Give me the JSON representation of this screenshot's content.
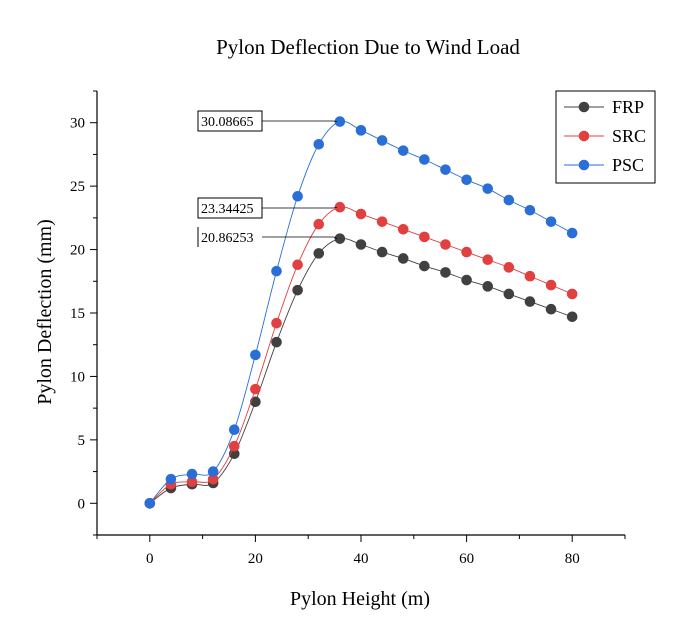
{
  "chart_data": {
    "type": "line",
    "title": "Pylon Deflection Due to Wind Load",
    "xlabel": "Pylon Height (m)",
    "ylabel": "Pylon Deflection (mm)",
    "xlim": [
      -10,
      90
    ],
    "ylim": [
      -2.5,
      32.5
    ],
    "xticks": [
      0,
      20,
      40,
      60,
      80
    ],
    "yticks": [
      0,
      5,
      10,
      15,
      20,
      25,
      30
    ],
    "x": [
      0,
      4,
      8,
      12,
      16,
      20,
      24,
      28,
      32,
      36,
      40,
      44,
      48,
      52,
      56,
      60,
      64,
      68,
      72,
      76,
      80
    ],
    "series": [
      {
        "name": "FRP",
        "color": "#404040",
        "values": [
          0,
          1.2,
          1.5,
          1.6,
          3.9,
          8.0,
          12.7,
          16.8,
          19.7,
          20.86,
          20.4,
          19.8,
          19.3,
          18.7,
          18.2,
          17.6,
          17.1,
          16.5,
          15.9,
          15.3,
          14.7
        ]
      },
      {
        "name": "SRC",
        "color": "#e04040",
        "values": [
          0,
          1.5,
          1.7,
          1.9,
          4.5,
          9.0,
          14.2,
          18.8,
          22.0,
          23.34,
          22.8,
          22.2,
          21.6,
          21.0,
          20.4,
          19.8,
          19.2,
          18.6,
          17.9,
          17.2,
          16.5
        ]
      },
      {
        "name": "PSC",
        "color": "#2a6fd6",
        "values": [
          0,
          1.9,
          2.3,
          2.5,
          5.8,
          11.7,
          18.3,
          24.2,
          28.3,
          30.09,
          29.4,
          28.6,
          27.8,
          27.1,
          26.3,
          25.5,
          24.8,
          23.9,
          23.1,
          22.2,
          21.3
        ]
      }
    ],
    "annotations": [
      {
        "text": "30.08665",
        "x": 36,
        "y": 30.09,
        "boxed": true
      },
      {
        "text": "23.34425",
        "x": 36,
        "y": 23.34,
        "boxed": true
      },
      {
        "text": "20.86253",
        "x": 36,
        "y": 20.86,
        "boxed": false
      }
    ],
    "legend_position": "top-right",
    "grid": false
  }
}
